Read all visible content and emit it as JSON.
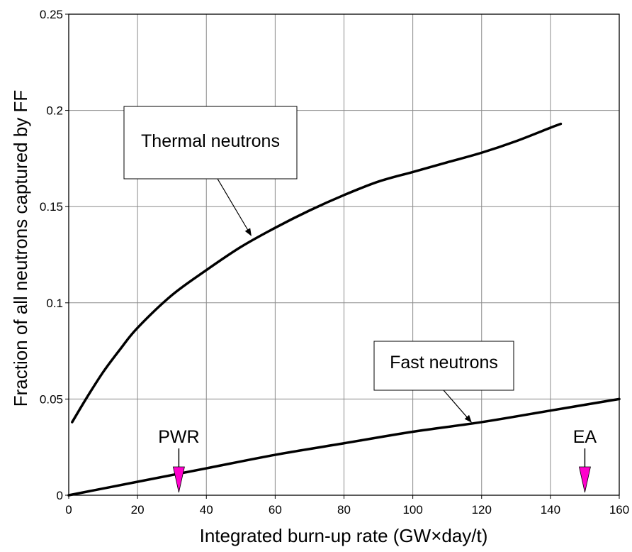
{
  "chart_data": {
    "type": "line",
    "title": "",
    "xlabel": "Integrated burn-up rate (GW×day/t)",
    "ylabel": "Fraction of all neutrons captured by FF",
    "xlim": [
      0,
      160
    ],
    "ylim": [
      0,
      0.25
    ],
    "grid": true,
    "x_ticks": [
      0,
      20,
      40,
      60,
      80,
      100,
      120,
      140,
      160
    ],
    "x_tick_labels": [
      "0",
      "20",
      "40",
      "60",
      "80",
      "100",
      "120",
      "140",
      "160"
    ],
    "y_ticks": [
      0,
      0.05,
      0.1,
      0.15,
      0.2,
      0.25
    ],
    "y_tick_labels": [
      "0",
      "0.05",
      "0.1",
      "0.15",
      "0.2",
      "0.25"
    ],
    "series": [
      {
        "name": "Thermal neutrons",
        "x": [
          1,
          5,
          10,
          15,
          20,
          30,
          40,
          50,
          60,
          70,
          80,
          90,
          100,
          110,
          120,
          130,
          140,
          143
        ],
        "y": [
          0.038,
          0.05,
          0.064,
          0.076,
          0.087,
          0.104,
          0.117,
          0.129,
          0.139,
          0.148,
          0.156,
          0.163,
          0.168,
          0.173,
          0.178,
          0.184,
          0.191,
          0.193
        ],
        "color": "#000000"
      },
      {
        "name": "Fast neutrons",
        "x": [
          0,
          20,
          40,
          60,
          80,
          100,
          120,
          140,
          160
        ],
        "y": [
          0.0,
          0.007,
          0.014,
          0.021,
          0.027,
          0.033,
          0.038,
          0.044,
          0.05
        ],
        "color": "#000000"
      }
    ],
    "annotations": [
      {
        "text": "Thermal neutrons",
        "series": 0,
        "arrow_to": [
          53,
          0.135
        ]
      },
      {
        "text": "Fast neutrons",
        "series": 1,
        "arrow_to": [
          117,
          0.038
        ]
      }
    ],
    "markers": [
      {
        "label": "PWR",
        "x": 32,
        "color": "#ff00cc"
      },
      {
        "label": "EA",
        "x": 150,
        "color": "#ff00cc"
      }
    ]
  }
}
